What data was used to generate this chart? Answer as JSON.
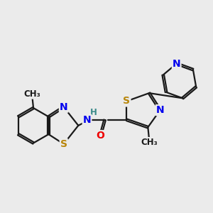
{
  "bg_color": "#ebebeb",
  "bond_color": "#1a1a1a",
  "atom_colors": {
    "N": "#0000ee",
    "S": "#b8860b",
    "O": "#ee0000",
    "H": "#3a8a8a",
    "C": "#1a1a1a"
  },
  "bond_width": 1.6,
  "dbl_off": 0.055,
  "fs": 10,
  "fs_small": 8.5
}
